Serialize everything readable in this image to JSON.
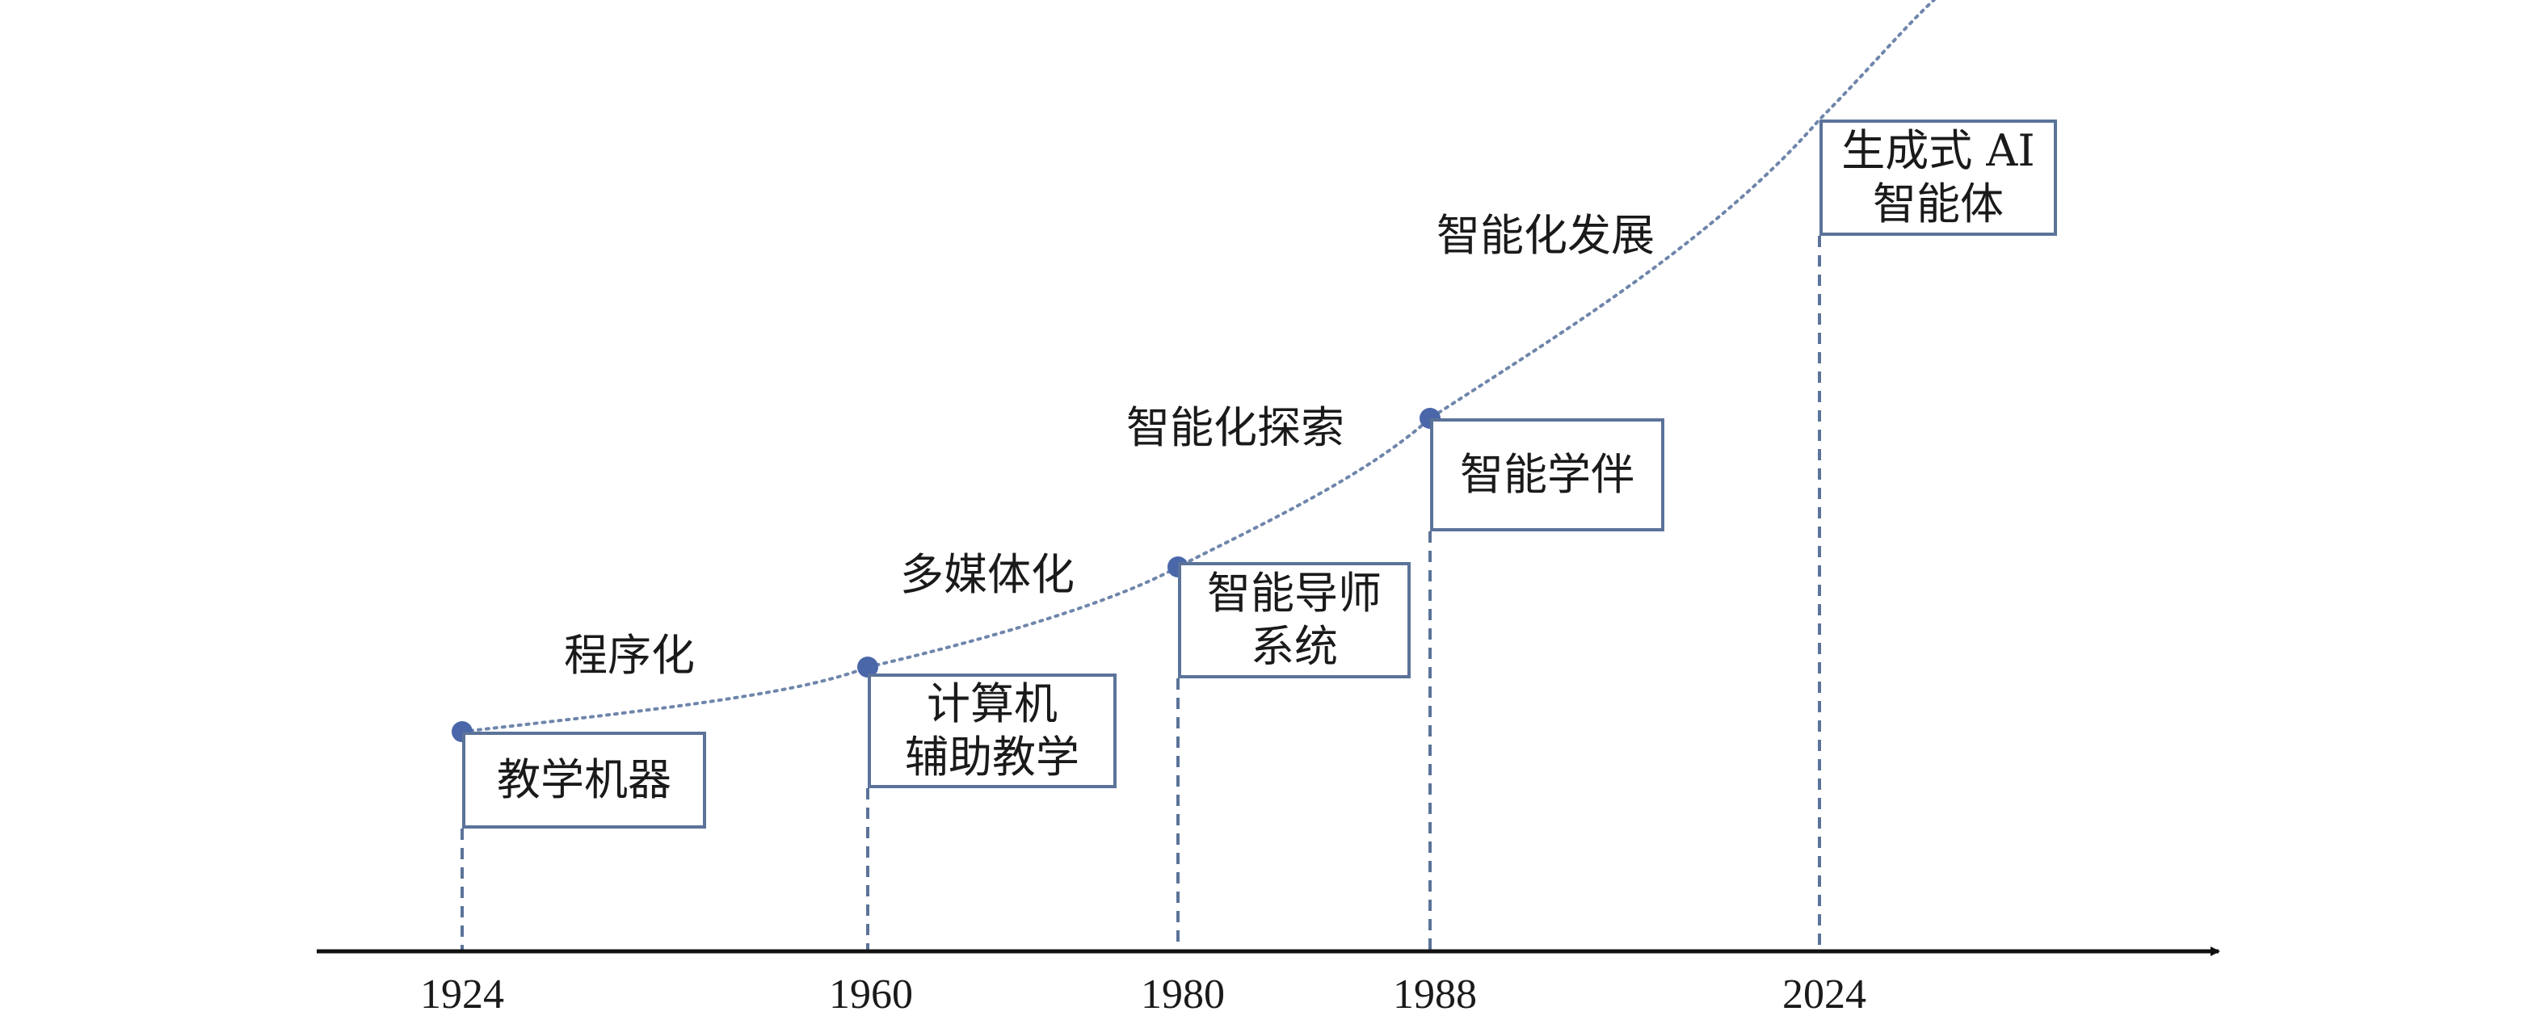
{
  "milestones": [
    {
      "year": "1924",
      "lines": [
        "教学机器"
      ]
    },
    {
      "year": "1960",
      "lines": [
        "计算机",
        "辅助教学"
      ]
    },
    {
      "year": "1980",
      "lines": [
        "智能导师",
        "系统"
      ]
    },
    {
      "year": "1988",
      "lines": [
        "智能学伴"
      ]
    },
    {
      "year": "2024",
      "lines": [
        "生成式 AI",
        "智能体"
      ]
    }
  ],
  "stages": [
    {
      "label": "程序化"
    },
    {
      "label": "多媒体化"
    },
    {
      "label": "智能化探索"
    },
    {
      "label": "智能化发展"
    }
  ],
  "colors": {
    "axis": "#111111",
    "curve": "#6f86ab",
    "dot": "#4a67aa",
    "box_border": "#5b7399",
    "guide": "#5b7399"
  }
}
